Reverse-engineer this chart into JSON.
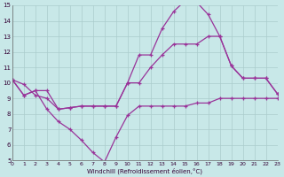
{
  "xlabel": "Windchill (Refroidissement éolien,°C)",
  "bg_color": "#c8e8e8",
  "grid_color": "#aacccc",
  "line_color": "#993399",
  "xlim": [
    0,
    23
  ],
  "ylim": [
    5,
    15
  ],
  "xticks": [
    0,
    1,
    2,
    3,
    4,
    5,
    6,
    7,
    8,
    9,
    10,
    11,
    12,
    13,
    14,
    15,
    16,
    17,
    18,
    19,
    20,
    21,
    22,
    23
  ],
  "yticks": [
    5,
    6,
    7,
    8,
    9,
    10,
    11,
    12,
    13,
    14,
    15
  ],
  "series": [
    {
      "x": [
        0,
        1,
        2,
        3,
        4,
        5,
        6,
        7,
        8,
        9,
        10,
        11,
        12,
        13,
        14,
        15,
        16,
        17,
        18,
        19,
        20,
        21,
        22,
        23
      ],
      "y": [
        10.2,
        9.9,
        9.2,
        9.0,
        8.3,
        8.4,
        8.5,
        8.5,
        8.5,
        8.5,
        10.0,
        11.8,
        11.8,
        13.5,
        14.6,
        15.3,
        15.2,
        14.4,
        13.0,
        11.1,
        10.3,
        10.3,
        10.3,
        9.3
      ]
    },
    {
      "x": [
        0,
        1,
        2,
        3,
        4,
        5,
        6,
        7,
        8,
        9,
        10,
        11,
        12,
        13,
        14,
        15,
        16,
        17,
        18,
        19,
        20,
        21,
        22,
        23
      ],
      "y": [
        10.2,
        9.2,
        9.5,
        9.5,
        8.3,
        8.4,
        8.5,
        8.5,
        8.5,
        8.5,
        10.0,
        10.0,
        11.0,
        11.8,
        12.5,
        12.5,
        12.5,
        13.0,
        13.0,
        11.1,
        10.3,
        10.3,
        10.3,
        9.3
      ]
    },
    {
      "x": [
        0,
        1,
        2,
        3,
        4,
        5,
        6,
        7,
        8,
        9,
        10,
        11,
        12,
        13,
        14,
        15,
        16,
        17,
        18,
        19,
        20,
        21,
        22,
        23
      ],
      "y": [
        10.2,
        9.2,
        9.5,
        8.3,
        7.5,
        7.0,
        6.3,
        5.5,
        4.9,
        6.5,
        7.9,
        8.5,
        8.5,
        8.5,
        8.5,
        8.5,
        8.7,
        8.7,
        9.0,
        9.0,
        9.0,
        9.0,
        9.0,
        9.0
      ]
    }
  ]
}
